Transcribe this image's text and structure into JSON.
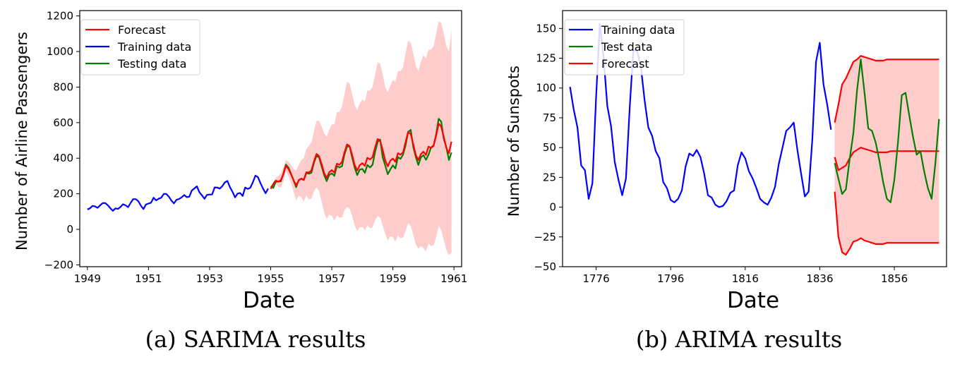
{
  "chart_data": [
    {
      "type": "line",
      "caption": "(a) SARIMA results",
      "xlabel": "Date",
      "ylabel": "Number of Airline Passengers",
      "xlim": [
        1948.75,
        1961.25
      ],
      "ylim": [
        -210,
        1230
      ],
      "xticks": [
        1949,
        1951,
        1953,
        1955,
        1957,
        1959,
        1961
      ],
      "yticks": [
        -200,
        0,
        200,
        400,
        600,
        800,
        1000,
        1200
      ],
      "legend_position": "top-left",
      "colors": {
        "forecast": "#ff0000",
        "training": "#0000ff",
        "testing": "#008000",
        "band": "#ffcccc"
      },
      "series": [
        {
          "name": "Training data",
          "start": 1949.0,
          "step": 0.08333,
          "values": [
            112,
            118,
            132,
            129,
            121,
            135,
            148,
            148,
            136,
            119,
            104,
            118,
            115,
            126,
            141,
            135,
            125,
            149,
            170,
            170,
            158,
            133,
            114,
            140,
            145,
            150,
            178,
            163,
            172,
            178,
            199,
            199,
            184,
            162,
            146,
            166,
            171,
            180,
            193,
            181,
            183,
            218,
            230,
            242,
            209,
            191,
            172,
            194,
            196,
            196,
            236,
            235,
            229,
            243,
            264,
            272,
            237,
            211,
            180,
            201,
            204,
            188,
            235,
            227,
            234,
            264,
            302,
            293,
            259,
            229,
            203,
            229
          ]
        },
        {
          "name": "Testing data",
          "start": 1955.0,
          "step": 0.08333,
          "values": [
            242,
            233,
            267,
            269,
            270,
            315,
            364,
            347,
            312,
            274,
            237,
            278,
            284,
            277,
            317,
            313,
            318,
            374,
            413,
            405,
            355,
            306,
            271,
            306,
            315,
            301,
            356,
            348,
            355,
            422,
            465,
            467,
            404,
            347,
            305,
            336,
            340,
            318,
            362,
            348,
            363,
            435,
            491,
            505,
            404,
            359,
            310,
            337,
            360,
            342,
            406,
            396,
            420,
            472,
            548,
            559,
            463,
            407,
            362,
            405,
            417,
            391,
            419,
            461,
            472,
            535,
            622,
            606,
            508,
            461,
            390,
            432
          ]
        },
        {
          "name": "Forecast",
          "start": 1955.0,
          "step": 0.08333,
          "values": [
            228,
            255,
            274,
            268,
            276,
            310,
            358,
            340,
            309,
            276,
            247,
            275,
            286,
            278,
            321,
            319,
            332,
            381,
            424,
            412,
            368,
            318,
            289,
            321,
            333,
            319,
            369,
            363,
            379,
            434,
            478,
            468,
            418,
            361,
            331,
            361,
            372,
            357,
            402,
            393,
            406,
            460,
            508,
            498,
            446,
            387,
            354,
            386,
            398,
            380,
            428,
            420,
            432,
            490,
            548,
            535,
            480,
            418,
            390,
            423,
            437,
            418,
            465,
            458,
            470,
            528,
            594,
            578,
            520,
            457,
            428,
            493
          ],
          "band_upper": [
            230,
            265,
            290,
            300,
            315,
            350,
            390,
            380,
            360,
            340,
            330,
            360,
            390,
            400,
            450,
            470,
            490,
            550,
            610,
            610,
            580,
            540,
            520,
            560,
            590,
            590,
            660,
            660,
            690,
            760,
            830,
            820,
            760,
            700,
            670,
            710,
            730,
            720,
            780,
            780,
            800,
            870,
            940,
            930,
            870,
            800,
            770,
            810,
            840,
            830,
            890,
            890,
            910,
            990,
            1060,
            1050,
            990,
            920,
            890,
            940,
            980,
            960,
            1010,
            1010,
            1030,
            1100,
            1170,
            1160,
            1100,
            1030,
            1000,
            1120
          ],
          "band_lower": [
            226,
            245,
            258,
            236,
            237,
            270,
            326,
            300,
            258,
            212,
            164,
            190,
            182,
            156,
            192,
            168,
            174,
            212,
            238,
            214,
            156,
            96,
            58,
            82,
            76,
            48,
            78,
            66,
            68,
            108,
            126,
            116,
            76,
            22,
            -8,
            12,
            14,
            -6,
            24,
            6,
            12,
            50,
            76,
            66,
            22,
            -26,
            -62,
            -38,
            -44,
            -70,
            -34,
            -50,
            -46,
            -10,
            36,
            20,
            -30,
            -84,
            -110,
            -94,
            -106,
            -124,
            -80,
            -94,
            -90,
            -44,
            18,
            -4,
            -60,
            -116,
            -144,
            -134
          ]
        }
      ]
    },
    {
      "type": "line",
      "caption": "(b) ARIMA results",
      "xlabel": "Date",
      "ylabel": "Number of Sunspots",
      "xlim": [
        1767,
        1870
      ],
      "ylim": [
        -50,
        165
      ],
      "xticks": [
        1776,
        1796,
        1816,
        1836,
        1856
      ],
      "yticks": [
        -50,
        -25,
        0,
        25,
        50,
        75,
        100,
        125,
        150
      ],
      "legend_position": "top-left",
      "colors": {
        "forecast": "#ff0000",
        "training": "#0000ff",
        "testing": "#008000",
        "band": "#ffcccc"
      },
      "series": [
        {
          "name": "Training data",
          "start": 1769,
          "step": 1,
          "values": [
            101,
            82,
            67,
            35,
            31,
            7,
            20,
            92,
            154,
            126,
            85,
            68,
            38,
            23,
            10,
            24,
            83,
            132,
            131,
            118,
            90,
            67,
            60,
            47,
            41,
            21,
            16,
            6,
            4,
            7,
            14,
            34,
            45,
            43,
            48,
            42,
            28,
            10,
            8,
            2,
            0,
            1,
            5,
            12,
            14,
            35,
            46,
            41,
            30,
            24,
            16,
            7,
            4,
            2,
            8,
            17,
            36,
            50,
            64,
            67,
            71,
            48,
            28,
            9,
            13,
            57,
            122,
            138,
            103,
            86,
            65
          ]
        },
        {
          "name": "Test data",
          "start": 1840,
          "step": 1,
          "values": [
            37,
            24,
            11,
            15,
            40,
            62,
            98,
            124,
            96,
            66,
            64,
            54,
            39,
            21,
            7,
            4,
            23,
            55,
            94,
            96,
            77,
            59,
            44,
            47,
            30,
            16,
            7,
            37,
            74
          ]
        },
        {
          "name": "Forecast",
          "start": 1840,
          "step": 1,
          "values": [
            42,
            31,
            33,
            35,
            41,
            46,
            48,
            50,
            49,
            48,
            47,
            46,
            46,
            46,
            46,
            47,
            47,
            47,
            47,
            47,
            47,
            47,
            47,
            47,
            47,
            47,
            47,
            47,
            47
          ],
          "band_upper": [
            71,
            86,
            103,
            108,
            115,
            122,
            124,
            127,
            126,
            125,
            124,
            123,
            123,
            123,
            124,
            124,
            124,
            124,
            124,
            124,
            124,
            124,
            124,
            124,
            124,
            124,
            124,
            124,
            124
          ],
          "band_lower": [
            13,
            -25,
            -38,
            -40,
            -35,
            -29,
            -28,
            -26,
            -28,
            -29,
            -30,
            -31,
            -31,
            -31,
            -30,
            -30,
            -30,
            -30,
            -30,
            -30,
            -30,
            -30,
            -30,
            -30,
            -30,
            -30,
            -30,
            -30,
            -30
          ]
        }
      ]
    }
  ]
}
